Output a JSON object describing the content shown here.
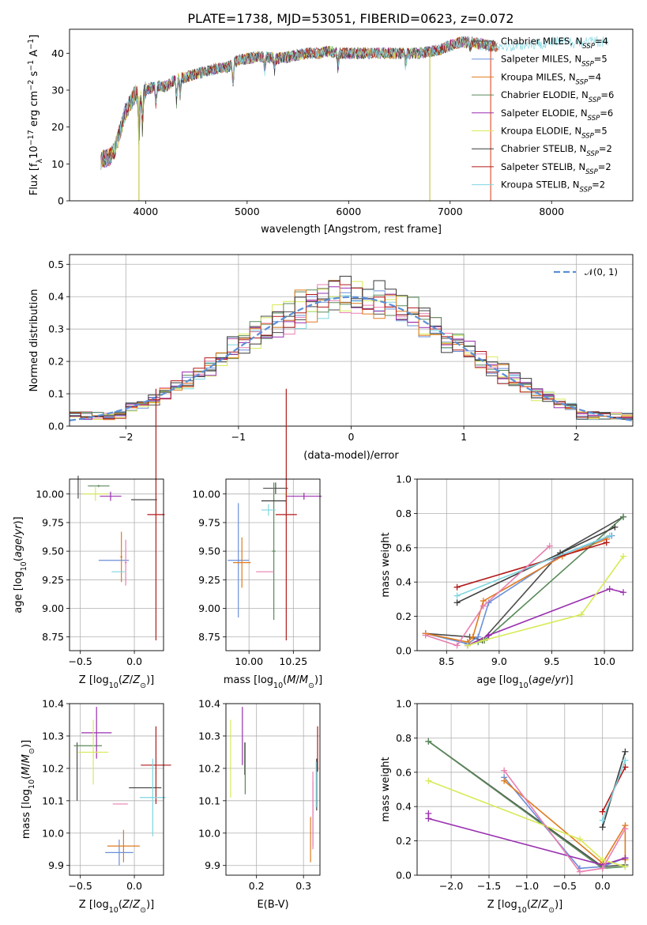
{
  "colors": [
    "#4d4d4d",
    "#6a8fd8",
    "#e07b1e",
    "#5a8a5a",
    "#9a2fb0",
    "#d8ea56",
    "#3a3a3a",
    "#b21a1a",
    "#7fd6e0",
    "#e87fb0"
  ],
  "chart_data": [
    {
      "id": "spectrum",
      "type": "line",
      "title": "PLATE=1738, MJD=53051, FIBERID=0623, z=0.072",
      "xlabel": "wavelength [Angstrom, rest frame]",
      "ylabel": "Flux [f_λ10^-17 erg cm^-2 s^-1 A^-1]",
      "xlim": [
        3250,
        8800
      ],
      "ylim": [
        0,
        46.5
      ],
      "xticks": [
        4000,
        5000,
        6000,
        7000,
        8000
      ],
      "yticks": [
        0,
        10,
        20,
        30,
        40
      ],
      "legend_position": "right",
      "continuum": [
        [
          3560,
          11
        ],
        [
          3650,
          12
        ],
        [
          3700,
          14
        ],
        [
          3800,
          24
        ],
        [
          3900,
          29
        ],
        [
          3950,
          28
        ],
        [
          4000,
          30
        ],
        [
          4100,
          31
        ],
        [
          4200,
          31
        ],
        [
          4300,
          33
        ],
        [
          4400,
          33.5
        ],
        [
          4500,
          34.5
        ],
        [
          4600,
          35
        ],
        [
          4700,
          36
        ],
        [
          4800,
          36
        ],
        [
          4900,
          38
        ],
        [
          5000,
          38.5
        ],
        [
          5100,
          39
        ],
        [
          5200,
          39
        ],
        [
          5300,
          38.5
        ],
        [
          5400,
          39
        ],
        [
          5500,
          39.5
        ],
        [
          5600,
          40
        ],
        [
          5700,
          40
        ],
        [
          5800,
          40.5
        ],
        [
          5900,
          40
        ],
        [
          6000,
          40
        ],
        [
          6100,
          40
        ],
        [
          6200,
          40
        ],
        [
          6300,
          40
        ],
        [
          6400,
          40
        ],
        [
          6500,
          40
        ],
        [
          6600,
          40
        ],
        [
          6700,
          40
        ],
        [
          6800,
          40.5
        ],
        [
          6900,
          41
        ],
        [
          7000,
          42
        ],
        [
          7100,
          43
        ],
        [
          7200,
          43
        ],
        [
          7300,
          42.5
        ],
        [
          7400,
          42
        ],
        [
          7600,
          42
        ],
        [
          7800,
          42.5
        ],
        [
          8000,
          43
        ],
        [
          8200,
          43
        ],
        [
          8400,
          43
        ],
        [
          8600,
          43.5
        ]
      ],
      "spikes": [
        [
          3934,
          0
        ],
        [
          6800,
          0
        ],
        [
          7400,
          0
        ]
      ],
      "series": [
        {
          "label": "Chabrier MILES, N",
          "sub": "SSP",
          "suffix": "=4"
        },
        {
          "label": "Salpeter MILES, N",
          "sub": "SSP",
          "suffix": "=5"
        },
        {
          "label": "Kroupa MILES, N",
          "sub": "SSP",
          "suffix": "=4"
        },
        {
          "label": "Chabrier ELODIE, N",
          "sub": "SSP",
          "suffix": "=6"
        },
        {
          "label": "Salpeter ELODIE, N",
          "sub": "SSP",
          "suffix": "=6"
        },
        {
          "label": "Kroupa ELODIE, N",
          "sub": "SSP",
          "suffix": "=5"
        },
        {
          "label": "Chabrier STELIB, N",
          "sub": "SSP",
          "suffix": "=2"
        },
        {
          "label": "Salpeter STELIB, N",
          "sub": "SSP",
          "suffix": "=2"
        },
        {
          "label": "Kroupa STELIB, N",
          "sub": "SSP",
          "suffix": "=2"
        }
      ]
    },
    {
      "id": "residuals",
      "type": "line",
      "xlabel": "(data-model)/error",
      "ylabel": "Normed distribution",
      "xlim": [
        -2.5,
        2.5
      ],
      "ylim": [
        0,
        0.53
      ],
      "xticks": [
        -2,
        -1,
        0,
        1,
        2
      ],
      "yticks": [
        0.0,
        0.1,
        0.2,
        0.3,
        0.4,
        0.5
      ],
      "bin_width": 0.1,
      "legend": "𝒩(0, 1)",
      "legend_position": "top-right",
      "grid": true
    },
    {
      "id": "age_vs_Z",
      "type": "scatter",
      "xlabel": "Z [log10(Z/Z⊙)]",
      "ylabel": "age  [log10(age/yr)]",
      "xlim": [
        -0.6,
        0.27
      ],
      "ylim": [
        8.63,
        10.13
      ],
      "xticks": [
        -0.5,
        0.0
      ],
      "yticks": [
        8.75,
        9.0,
        9.25,
        9.5,
        9.75,
        10.0
      ],
      "grid": true,
      "points": [
        {
          "x": -0.52,
          "y": 10.06,
          "xerr": 0.0,
          "yerr": 0.1
        },
        {
          "x": -0.19,
          "y": 9.42,
          "xerr": 0.14,
          "yerr": 0.0
        },
        {
          "x": -0.12,
          "y": 9.45,
          "xerr": 0.01,
          "yerr": 0.22
        },
        {
          "x": -0.33,
          "y": 10.07,
          "xerr": 0.1,
          "yerr": 0.01
        },
        {
          "x": -0.22,
          "y": 9.98,
          "xerr": 0.1,
          "yerr": 0.04
        },
        {
          "x": -0.36,
          "y": 10.0,
          "xerr": 0.12,
          "yerr": 0.06
        },
        {
          "x": 0.09,
          "y": 9.95,
          "xerr": 0.12,
          "yerr": 0.0
        },
        {
          "x": 0.2,
          "y": 9.82,
          "xerr": 0.08,
          "yerr": 1.1
        },
        {
          "x": -0.15,
          "y": 9.32,
          "xerr": 0.06,
          "yerr": 0.0
        },
        {
          "x": -0.08,
          "y": 9.4,
          "xerr": 0.01,
          "yerr": 0.2
        }
      ]
    },
    {
      "id": "age_vs_mass",
      "type": "scatter",
      "xlabel": "mass [log10(M/M⊙)]",
      "ylabel": "",
      "xlim": [
        9.87,
        10.4
      ],
      "ylim": [
        8.63,
        10.13
      ],
      "xticks": [
        10.0,
        10.25
      ],
      "yticks": [
        8.75,
        9.0,
        9.25,
        9.5,
        9.75,
        10.0
      ],
      "grid": true,
      "points": [
        {
          "x": 10.15,
          "y": 10.05,
          "xerr": 0.07,
          "yerr": 0.05
        },
        {
          "x": 9.94,
          "y": 9.42,
          "xerr": 0.06,
          "yerr": 0.5
        },
        {
          "x": 9.96,
          "y": 9.4,
          "xerr": 0.05,
          "yerr": 0.22
        },
        {
          "x": 10.14,
          "y": 9.5,
          "xerr": 0.01,
          "yerr": 0.6
        },
        {
          "x": 10.31,
          "y": 9.98,
          "xerr": 0.1,
          "yerr": 0.03
        },
        {
          "x": 10.21,
          "y": 10.0,
          "xerr": 0.01,
          "yerr": 0.1
        },
        {
          "x": 10.14,
          "y": 9.94,
          "xerr": 0.07,
          "yerr": 0.0
        },
        {
          "x": 10.21,
          "y": 9.82,
          "xerr": 0.06,
          "yerr": 1.1
        },
        {
          "x": 10.11,
          "y": 9.86,
          "xerr": 0.04,
          "yerr": 0.05
        },
        {
          "x": 10.09,
          "y": 9.32,
          "xerr": 0.05,
          "yerr": 0.0
        }
      ]
    },
    {
      "id": "massweight_vs_age",
      "type": "line",
      "xlabel": "age  [log10(age/yr)]",
      "ylabel": "mass weight",
      "xlim": [
        8.22,
        10.27
      ],
      "ylim": [
        0.0,
        1.0
      ],
      "xticks": [
        8.5,
        9.0,
        9.5,
        10.0
      ],
      "yticks": [
        0.0,
        0.2,
        0.4,
        0.6,
        0.8,
        1.0
      ],
      "grid": true,
      "series": [
        {
          "x": [
            8.3,
            8.72,
            8.84,
            9.58,
            10.18
          ],
          "y": [
            0.1,
            0.08,
            0.06,
            0.57,
            0.78
          ]
        },
        {
          "x": [
            8.3,
            8.7,
            8.8,
            8.9,
            9.6,
            10.07
          ],
          "y": [
            0.1,
            0.04,
            0.08,
            0.28,
            0.56,
            0.67
          ]
        },
        {
          "x": [
            8.3,
            8.7,
            8.75,
            8.85,
            9.6,
            10.02
          ],
          "y": [
            0.1,
            0.05,
            0.08,
            0.29,
            0.55,
            0.65
          ]
        },
        {
          "x": [
            8.7,
            8.8,
            8.86,
            10.18
          ],
          "y": [
            0.03,
            0.05,
            0.06,
            0.78
          ]
        },
        {
          "x": [
            8.7,
            8.9,
            10.05,
            10.18
          ],
          "y": [
            0.03,
            0.09,
            0.36,
            0.34
          ]
        },
        {
          "x": [
            8.7,
            8.85,
            9.78,
            10.18
          ],
          "y": [
            0.03,
            0.06,
            0.21,
            0.55
          ]
        },
        {
          "x": [
            8.6,
            10.1
          ],
          "y": [
            0.28,
            0.72
          ]
        },
        {
          "x": [
            8.6,
            10.02
          ],
          "y": [
            0.37,
            0.63
          ]
        },
        {
          "x": [
            8.6,
            10.05
          ],
          "y": [
            0.32,
            0.67
          ]
        },
        {
          "x": [
            8.3,
            8.6,
            8.85,
            9.48
          ],
          "y": [
            0.09,
            0.03,
            0.26,
            0.61
          ]
        }
      ]
    },
    {
      "id": "mass_vs_Z",
      "type": "scatter",
      "xlabel": "Z [log10(Z/Z⊙)]",
      "ylabel": "mass [log10(M/M⊙)]",
      "xlim": [
        -0.6,
        0.27
      ],
      "ylim": [
        9.87,
        10.4
      ],
      "xticks": [
        -0.5,
        0.0
      ],
      "yticks": [
        9.9,
        10.0,
        10.1,
        10.2,
        10.3,
        10.4
      ],
      "grid": true,
      "points": [
        {
          "x": -0.53,
          "y": 10.19,
          "xerr": 0.0,
          "yerr": 0.09
        },
        {
          "x": -0.14,
          "y": 9.94,
          "xerr": 0.13,
          "yerr": 0.04
        },
        {
          "x": -0.1,
          "y": 9.96,
          "xerr": 0.15,
          "yerr": 0.05
        },
        {
          "x": -0.43,
          "y": 10.27,
          "xerr": 0.13,
          "yerr": 0.0
        },
        {
          "x": -0.35,
          "y": 10.31,
          "xerr": 0.14,
          "yerr": 0.08
        },
        {
          "x": -0.38,
          "y": 10.25,
          "xerr": 0.14,
          "yerr": 0.1
        },
        {
          "x": 0.1,
          "y": 10.14,
          "xerr": 0.15,
          "yerr": 0.0
        },
        {
          "x": 0.2,
          "y": 10.21,
          "xerr": 0.14,
          "yerr": 0.12
        },
        {
          "x": 0.17,
          "y": 10.11,
          "xerr": 0.12,
          "yerr": 0.12
        },
        {
          "x": -0.13,
          "y": 10.09,
          "xerr": 0.07,
          "yerr": 0.0
        }
      ]
    },
    {
      "id": "mass_vs_EBV",
      "type": "scatter",
      "xlabel": "E(B-V)",
      "ylabel": "",
      "xlim": [
        0.135,
        0.335
      ],
      "ylim": [
        9.87,
        10.4
      ],
      "xticks": [
        0.2,
        0.3
      ],
      "yticks": [
        9.9,
        10.0,
        10.1,
        10.2,
        10.3,
        10.4
      ],
      "grid": true,
      "points": [
        {
          "x": 0.175,
          "y": 10.23,
          "xerr": 0.0,
          "yerr": 0.05
        },
        {
          "x": 0.32,
          "y": 10.06,
          "xerr": 0.0,
          "yerr": 0.1
        },
        {
          "x": 0.315,
          "y": 9.98,
          "xerr": 0.0,
          "yerr": 0.07
        },
        {
          "x": 0.176,
          "y": 10.2,
          "xerr": 0.0,
          "yerr": 0.08
        },
        {
          "x": 0.17,
          "y": 10.3,
          "xerr": 0.0,
          "yerr": 0.09
        },
        {
          "x": 0.145,
          "y": 10.23,
          "xerr": 0.0,
          "yerr": 0.12
        },
        {
          "x": 0.328,
          "y": 10.15,
          "xerr": 0.0,
          "yerr": 0.08
        },
        {
          "x": 0.33,
          "y": 10.26,
          "xerr": 0.0,
          "yerr": 0.07
        },
        {
          "x": 0.327,
          "y": 10.15,
          "xerr": 0.0,
          "yerr": 0.07
        },
        {
          "x": 0.32,
          "y": 10.07,
          "xerr": 0.0,
          "yerr": 0.12
        }
      ]
    },
    {
      "id": "massweight_vs_Z",
      "type": "line",
      "xlabel": "Z [log10(Z/Z⊙)]",
      "ylabel": "mass weight",
      "xlim": [
        -2.45,
        0.4
      ],
      "ylim": [
        0.0,
        1.0
      ],
      "xticks": [
        -2.0,
        -1.5,
        -1.0,
        -0.5,
        0.0
      ],
      "yticks": [
        0.0,
        0.2,
        0.4,
        0.6,
        0.8,
        1.0
      ],
      "grid": true,
      "series": [
        {
          "x": [
            -2.3,
            0.0,
            0.3
          ],
          "y": [
            0.78,
            0.05,
            0.06
          ]
        },
        {
          "x": [
            -1.3,
            -0.3,
            0.0,
            0.3
          ],
          "y": [
            0.57,
            0.04,
            0.05,
            0.1
          ]
        },
        {
          "x": [
            -1.3,
            0.0,
            0.3,
            0.3
          ],
          "y": [
            0.55,
            0.07,
            0.29,
            0.09
          ]
        },
        {
          "x": [
            -2.3,
            0.0,
            0.3
          ],
          "y": [
            0.78,
            0.04,
            0.05
          ]
        },
        {
          "x": [
            -2.3,
            -2.3,
            0.0,
            0.3
          ],
          "y": [
            0.36,
            0.33,
            0.06,
            0.1
          ]
        },
        {
          "x": [
            -2.3,
            -0.3,
            0.0,
            0.3
          ],
          "y": [
            0.55,
            0.21,
            0.09,
            0.05
          ]
        },
        {
          "x": [
            0.0,
            0.3
          ],
          "y": [
            0.28,
            0.72
          ]
        },
        {
          "x": [
            0.0,
            0.3
          ],
          "y": [
            0.37,
            0.63
          ]
        },
        {
          "x": [
            0.0,
            0.3
          ],
          "y": [
            0.32,
            0.67
          ]
        },
        {
          "x": [
            -1.3,
            -0.3,
            0.0,
            0.3
          ],
          "y": [
            0.61,
            0.02,
            0.04,
            0.27
          ]
        }
      ]
    }
  ]
}
